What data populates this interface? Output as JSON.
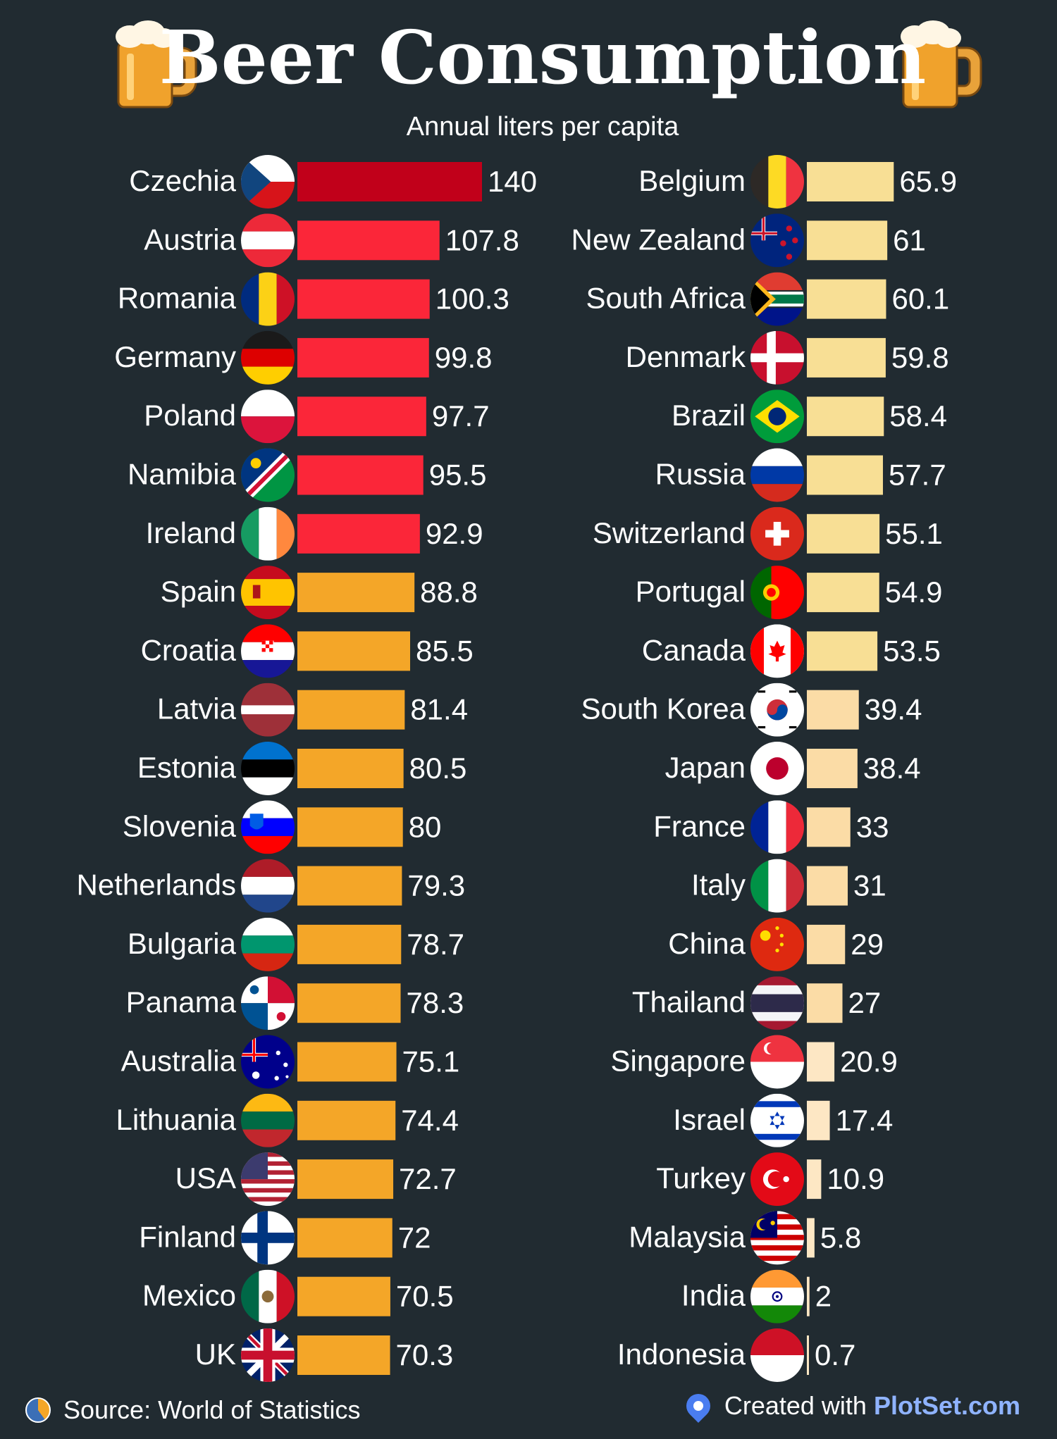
{
  "title": "Beer Consumption",
  "subtitle": "Annual liters per capita",
  "title_icon": "beer-mug-icon",
  "footer": {
    "source": "Source: World of Statistics",
    "credit_prefix": "Created with",
    "credit_brand": "PlotSet.com"
  },
  "colors": {
    "background": "#212b31",
    "top": "#c1001a",
    "red": "#fb2639",
    "orange": "#f4a628",
    "pale_yellow": "#f8df95",
    "light_peach": "#fbdca6",
    "cream": "#fde7c4"
  },
  "chart_data": {
    "type": "bar",
    "orientation": "horizontal",
    "title": "Beer Consumption",
    "subtitle": "Annual liters per capita",
    "xlim": [
      0,
      140
    ],
    "columns": [
      {
        "categories": [
          "Czechia",
          "Austria",
          "Romania",
          "Germany",
          "Poland",
          "Namibia",
          "Ireland",
          "Spain",
          "Croatia",
          "Latvia",
          "Estonia",
          "Slovenia",
          "Netherlands",
          "Bulgaria",
          "Panama",
          "Australia",
          "Lithuania",
          "USA",
          "Finland",
          "Mexico",
          "UK"
        ],
        "values": [
          140,
          107.8,
          100.3,
          99.8,
          97.7,
          95.5,
          92.9,
          88.8,
          85.5,
          81.4,
          80.5,
          80,
          79.3,
          78.7,
          78.3,
          75.1,
          74.4,
          72.7,
          72,
          70.5,
          70.3
        ],
        "labels": [
          "140",
          "107.8",
          "100.3",
          "99.8",
          "97.7",
          "95.5",
          "92.9",
          "88.8",
          "85.5",
          "81.4",
          "80.5",
          "80",
          "79.3",
          "78.7",
          "78.3",
          "75.1",
          "74.4",
          "72.7",
          "72",
          "70.5",
          "70.3"
        ]
      },
      {
        "categories": [
          "Belgium",
          "New Zealand",
          "South Africa",
          "Denmark",
          "Brazil",
          "Russia",
          "Switzerland",
          "Portugal",
          "Canada",
          "South Korea",
          "Japan",
          "France",
          "Italy",
          "China",
          "Thailand",
          "Singapore",
          "Israel",
          "Turkey",
          "Malaysia",
          "India",
          "Indonesia"
        ],
        "values": [
          65.9,
          61,
          60.1,
          59.8,
          58.4,
          57.7,
          55.1,
          54.9,
          53.5,
          39.4,
          38.4,
          33,
          31,
          29,
          27,
          20.9,
          17.4,
          10.9,
          5.8,
          2,
          0.7
        ],
        "labels": [
          "65.9",
          "61",
          "60.1",
          "59.8",
          "58.4",
          "57.7",
          "55.1",
          "54.9",
          "53.5",
          "39.4",
          "38.4",
          "33",
          "31",
          "29",
          "27",
          "20.9",
          "17.4",
          "10.9",
          "5.8",
          "2",
          "0.7"
        ]
      }
    ]
  }
}
